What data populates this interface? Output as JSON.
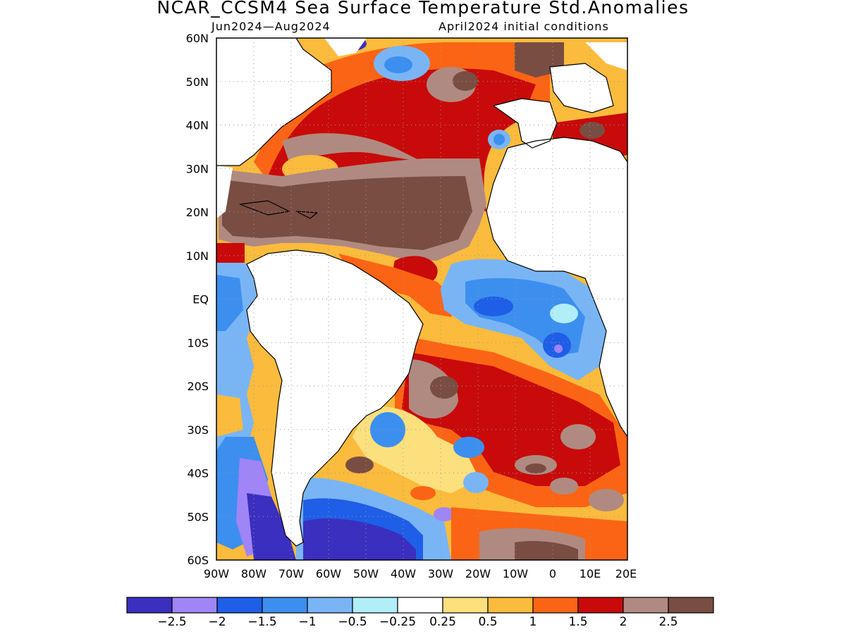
{
  "title": "NCAR_CCSM4 Sea Surface Temperature Std.Anomalies",
  "subtitle_left": "Jun2024—Aug2024",
  "subtitle_right": "April2024 initial conditions",
  "lat_labels": [
    "60N",
    "50N",
    "40N",
    "30N",
    "20N",
    "10N",
    "EQ",
    "10S",
    "20S",
    "30S",
    "40S",
    "50S",
    "60S"
  ],
  "lon_labels": [
    "90W",
    "80W",
    "70W",
    "60W",
    "50W",
    "40W",
    "30W",
    "20W",
    "10W",
    "0",
    "10E",
    "20E"
  ],
  "colorbar": {
    "colors": [
      "#3a2fbe",
      "#9f85f7",
      "#1f5ee6",
      "#3c8fef",
      "#79b5f5",
      "#b0eef8",
      "#ffffff",
      "#fde07e",
      "#fbbb3c",
      "#fb6414",
      "#c80a0a",
      "#b08a80",
      "#7a4d42"
    ],
    "labels": [
      "−2.5",
      "−2",
      "−1.5",
      "−1",
      "−0.5",
      "−0.25",
      "0.25",
      "0.5",
      "1",
      "1.5",
      "2",
      "2.5"
    ]
  }
}
